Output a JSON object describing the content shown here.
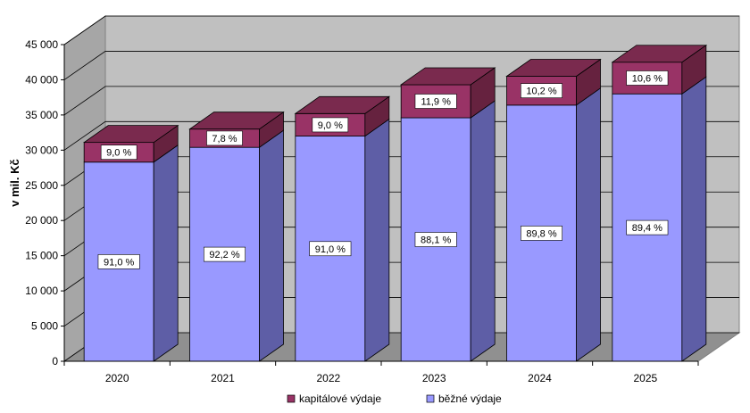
{
  "chart_data": {
    "type": "bar",
    "stacked": true,
    "three_d": true,
    "categories": [
      "2020",
      "2021",
      "2022",
      "2023",
      "2024",
      "2025"
    ],
    "series": [
      {
        "name": "běžné výdaje",
        "values": [
          28300,
          30400,
          32000,
          34600,
          36400,
          38000
        ],
        "labels": [
          "91,0 %",
          "92,2 %",
          "91,0 %",
          "88,1 %",
          "89,8 %",
          "89,4 %"
        ],
        "color": "#9999ff",
        "side_color": "#5e5ea6",
        "top_color": "#b3b3ff"
      },
      {
        "name": "kapitálové výdaje",
        "values": [
          2800,
          2600,
          3200,
          4700,
          4100,
          4500
        ],
        "labels": [
          "9,0 %",
          "7,8 %",
          "9,0 %",
          "11,9 %",
          "10,2 %",
          "10,6 %"
        ],
        "color": "#993366",
        "side_color": "#66223f",
        "top_color": "#7a2a4e"
      }
    ],
    "ylabel": "v mil. Kč",
    "ylim": [
      0,
      45000
    ],
    "yticks": [
      0,
      5000,
      10000,
      15000,
      20000,
      25000,
      30000,
      35000,
      40000,
      45000
    ],
    "ytick_labels": [
      "0",
      "5 000",
      "10 000",
      "15 000",
      "20 000",
      "25 000",
      "30 000",
      "35 000",
      "40 000",
      "45 000"
    ],
    "grid": true,
    "legend": {
      "position": "bottom",
      "entries": [
        {
          "name": "kapitálové výdaje",
          "color": "#993366"
        },
        {
          "name": "běžné výdaje",
          "color": "#9999ff"
        }
      ]
    }
  }
}
